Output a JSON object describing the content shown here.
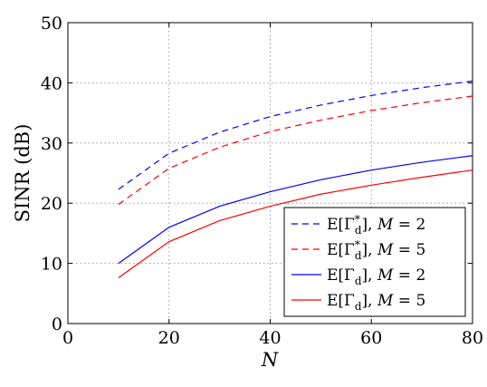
{
  "chart_data": {
    "type": "line",
    "title": "",
    "xlabel": "N",
    "ylabel": "SINR (dB)",
    "xlim": [
      0,
      80
    ],
    "ylim": [
      0,
      50
    ],
    "xticks": [
      "0",
      "20",
      "40",
      "60",
      "80"
    ],
    "yticks": [
      "0",
      "10",
      "20",
      "30",
      "40",
      "50"
    ],
    "grid": true,
    "legend_position": "bottom-right",
    "x": [
      10,
      20,
      30,
      40,
      50,
      60,
      70,
      80
    ],
    "series": [
      {
        "name": "E[Γd*], M = 2",
        "legend_base": "Γ",
        "legend_sub": "d",
        "legend_sup": "*",
        "legend_param": "M = 2",
        "color": "#0000ff",
        "style": "dashed",
        "values": [
          22.3,
          28.3,
          31.8,
          34.4,
          36.3,
          37.9,
          39.2,
          40.3
        ]
      },
      {
        "name": "E[Γd*], M = 5",
        "legend_base": "Γ",
        "legend_sub": "d",
        "legend_sup": "*",
        "legend_param": "M = 5",
        "color": "#ff0000",
        "style": "dashed",
        "values": [
          19.8,
          25.8,
          29.3,
          31.9,
          33.8,
          35.4,
          36.7,
          37.8
        ]
      },
      {
        "name": "E[Γd], M = 2",
        "legend_base": "Γ",
        "legend_sub": "d",
        "legend_sup": "",
        "legend_param": "M = 2",
        "color": "#0000ff",
        "style": "solid",
        "values": [
          10.0,
          16.0,
          19.5,
          21.9,
          23.9,
          25.5,
          26.8,
          27.9
        ]
      },
      {
        "name": "E[Γd], M = 5",
        "legend_base": "Γ",
        "legend_sub": "d",
        "legend_sup": "",
        "legend_param": "M = 5",
        "color": "#ff0000",
        "style": "solid",
        "values": [
          7.6,
          13.6,
          17.1,
          19.5,
          21.5,
          23.0,
          24.3,
          25.5
        ]
      }
    ]
  }
}
